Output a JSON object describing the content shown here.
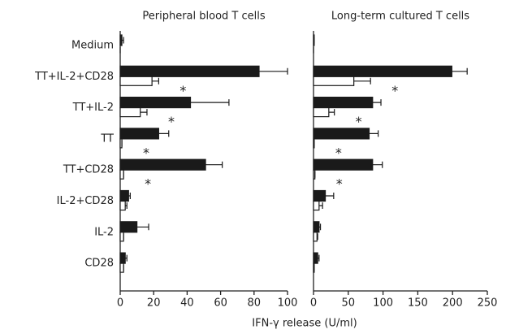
{
  "chart_data": [
    {
      "type": "bar",
      "orientation": "horizontal",
      "title": "Peripheral blood T cells",
      "categories": [
        "Medium",
        "TT+IL-2+CD28",
        "TT+IL-2",
        "TT",
        "TT+CD28",
        "IL-2+CD28",
        "IL-2",
        "CD28"
      ],
      "series": [
        {
          "color": "#1a1a1a",
          "values": [
            1,
            83,
            42,
            23,
            51,
            5,
            10,
            3
          ],
          "errors": [
            1,
            17,
            23,
            6,
            10,
            1,
            7,
            1
          ]
        },
        {
          "color": "#ffffff",
          "values": [
            0,
            19,
            12,
            1,
            2,
            3,
            2,
            2
          ],
          "errors": [
            0,
            4,
            4,
            0,
            0,
            1,
            0,
            0
          ]
        }
      ],
      "markers": [
        null,
        "*",
        "*",
        "*",
        "*",
        null,
        null,
        null
      ],
      "xlim": [
        0,
        100
      ],
      "xticks": [
        0,
        20,
        40,
        60,
        80,
        100
      ]
    },
    {
      "type": "bar",
      "orientation": "horizontal",
      "title": "Long-term cultured T cells",
      "series": [
        {
          "color": "#1a1a1a",
          "values": [
            1,
            199,
            85,
            80,
            85,
            17,
            8,
            6
          ],
          "errors": [
            0,
            22,
            12,
            13,
            14,
            12,
            2,
            2
          ]
        },
        {
          "color": "#ffffff",
          "values": [
            0,
            58,
            22,
            1,
            2,
            8,
            5,
            1
          ],
          "errors": [
            0,
            24,
            8,
            0,
            0,
            5,
            1,
            0
          ]
        }
      ],
      "markers": [
        null,
        "*",
        "*",
        "*",
        "*",
        null,
        null,
        null
      ],
      "xlim": [
        0,
        250
      ],
      "xticks": [
        0,
        50,
        100,
        150,
        200,
        250
      ]
    }
  ],
  "x_label": "IFN-γ release (U/ml)"
}
